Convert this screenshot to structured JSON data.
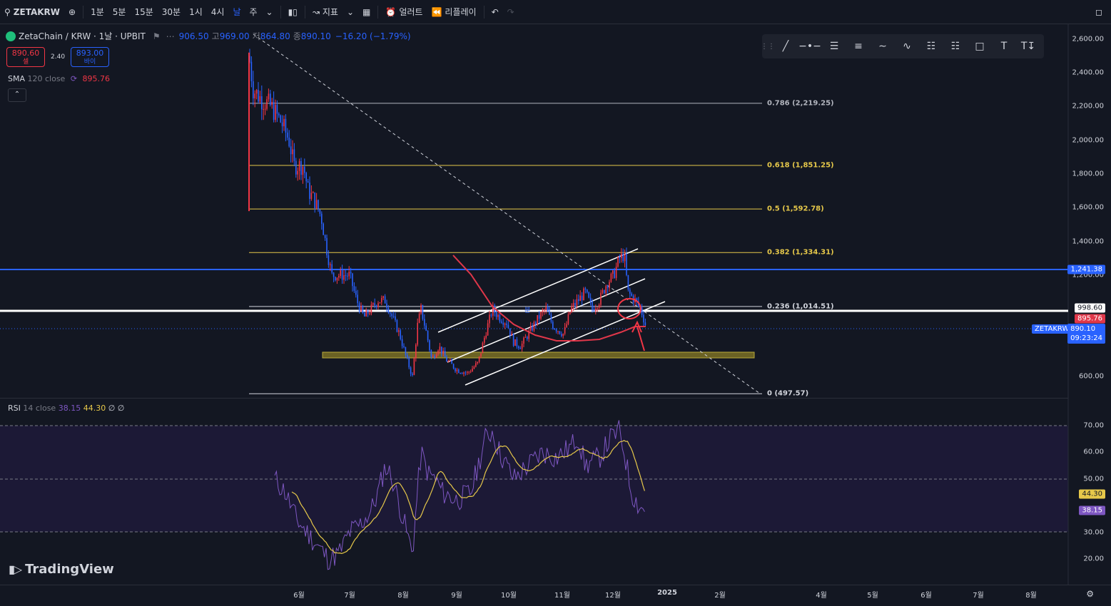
{
  "toolbar": {
    "symbol": "ZETAKRW",
    "intervals": [
      "1분",
      "5분",
      "15분",
      "30분",
      "1시",
      "4시",
      "날",
      "주"
    ],
    "active_interval": "날",
    "indicators_label": "지표",
    "alert_label": "얼러트",
    "replay_label": "리플레이"
  },
  "legend": {
    "title": "ZetaChain / KRW · 1날 · UPBIT",
    "open_label": "",
    "open": "906.50",
    "high_label": "고",
    "high": "969.00",
    "low_label": "저",
    "low": "864.80",
    "close_label": "종",
    "close": "890.10",
    "change": "−16.20 (−1.79%)"
  },
  "trade": {
    "sell_price": "890.60",
    "sell_label": "셀",
    "spread": "2.40",
    "buy_price": "893.00",
    "buy_label": "바이"
  },
  "sma": {
    "label": "SMA",
    "params": "120 close",
    "value": "895.76"
  },
  "rsi": {
    "label": "RSI",
    "params": "14 close",
    "value1": "38.15",
    "value2": "44.30",
    "extra": "∅ ∅"
  },
  "watermark": "TradingView",
  "price_axis": [
    "2,600.00",
    "2,400.00",
    "2,200.00",
    "2,000.00",
    "1,800.00",
    "1,600.00",
    "1,400.00",
    "1,200.00",
    "600.00"
  ],
  "rsi_axis": [
    "70.00",
    "60.00",
    "50.00",
    "30.00",
    "20.00"
  ],
  "time_axis": [
    "6월",
    "7월",
    "8월",
    "9월",
    "10월",
    "11월",
    "12월",
    "2025",
    "2월",
    "4월",
    "5월",
    "6월",
    "7월",
    "8월"
  ],
  "fib_levels": [
    {
      "label": "0.786 (2,219.25)",
      "price": 2219.25,
      "color": "#b2b5be"
    },
    {
      "label": "0.618 (1,851.25)",
      "price": 1851.25,
      "color": "#e6c84a"
    },
    {
      "label": "0.5 (1,592.78)",
      "price": 1592.78,
      "color": "#e6c84a"
    },
    {
      "label": "0.382 (1,334.31)",
      "price": 1334.31,
      "color": "#e6c84a"
    },
    {
      "label": "0.236 (1,014.51)",
      "price": 1014.51,
      "color": "#d1d4dc"
    },
    {
      "label": "0 (497.57)",
      "price": 497.57,
      "color": "#d1d4dc"
    }
  ],
  "price_tags": {
    "horizontal_line": "1,241.38",
    "white_line": "998.60",
    "sma_tag": "895.76",
    "symbol_tag": "ZETAKRW",
    "last_price": "890.10",
    "countdown": "09:23:24"
  },
  "rsi_tags": {
    "rsi_ma": "44.30",
    "rsi": "38.15"
  },
  "colors": {
    "bg": "#131722",
    "up": "#f23645",
    "down": "#2962ff",
    "sma": "#e0374a",
    "rsi": "#7e57c2",
    "rsi_ma": "#e6c84a",
    "hline": "#2962ff"
  }
}
